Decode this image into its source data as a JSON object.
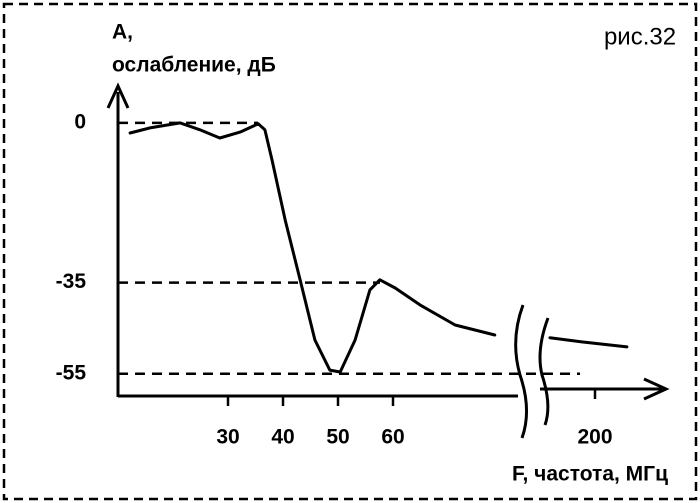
{
  "chart_data": {
    "type": "line",
    "title": "рис.32",
    "y_label": [
      "A,",
      "ослабление, дБ"
    ],
    "x_label": "F, частота, МГц",
    "x_segments": [
      {
        "xlim": [
          10,
          80
        ]
      },
      {
        "xlim": [
          190,
          215
        ]
      }
    ],
    "ylim": [
      -60,
      7
    ],
    "yticks": [
      0,
      -35,
      -55
    ],
    "xticks": [
      30,
      40,
      50,
      60,
      200
    ],
    "reference_lines": true,
    "series": [
      {
        "color": "#000000",
        "x": [
          12.2,
          15.8,
          21.3,
          24.9,
          28.5,
          32.2,
          35.5,
          36.7,
          38,
          40.4,
          43.1,
          45.8,
          48.5,
          50.4,
          53.1,
          55.8,
          57.6,
          60.4,
          64.9,
          71.3,
          78.5,
          null,
          191.8,
          197.6,
          205.8
        ],
        "values": [
          -2.2,
          -1.1,
          0,
          -1.5,
          -3.3,
          -2,
          -0.2,
          -1.5,
          -8.1,
          -21.3,
          -34.4,
          -47.6,
          -54.2,
          -54.6,
          -47.6,
          -36.6,
          -34.4,
          -36.2,
          -39.9,
          -44.3,
          -46.5,
          null,
          -47.1,
          -48,
          -49.1
        ]
      }
    ]
  }
}
